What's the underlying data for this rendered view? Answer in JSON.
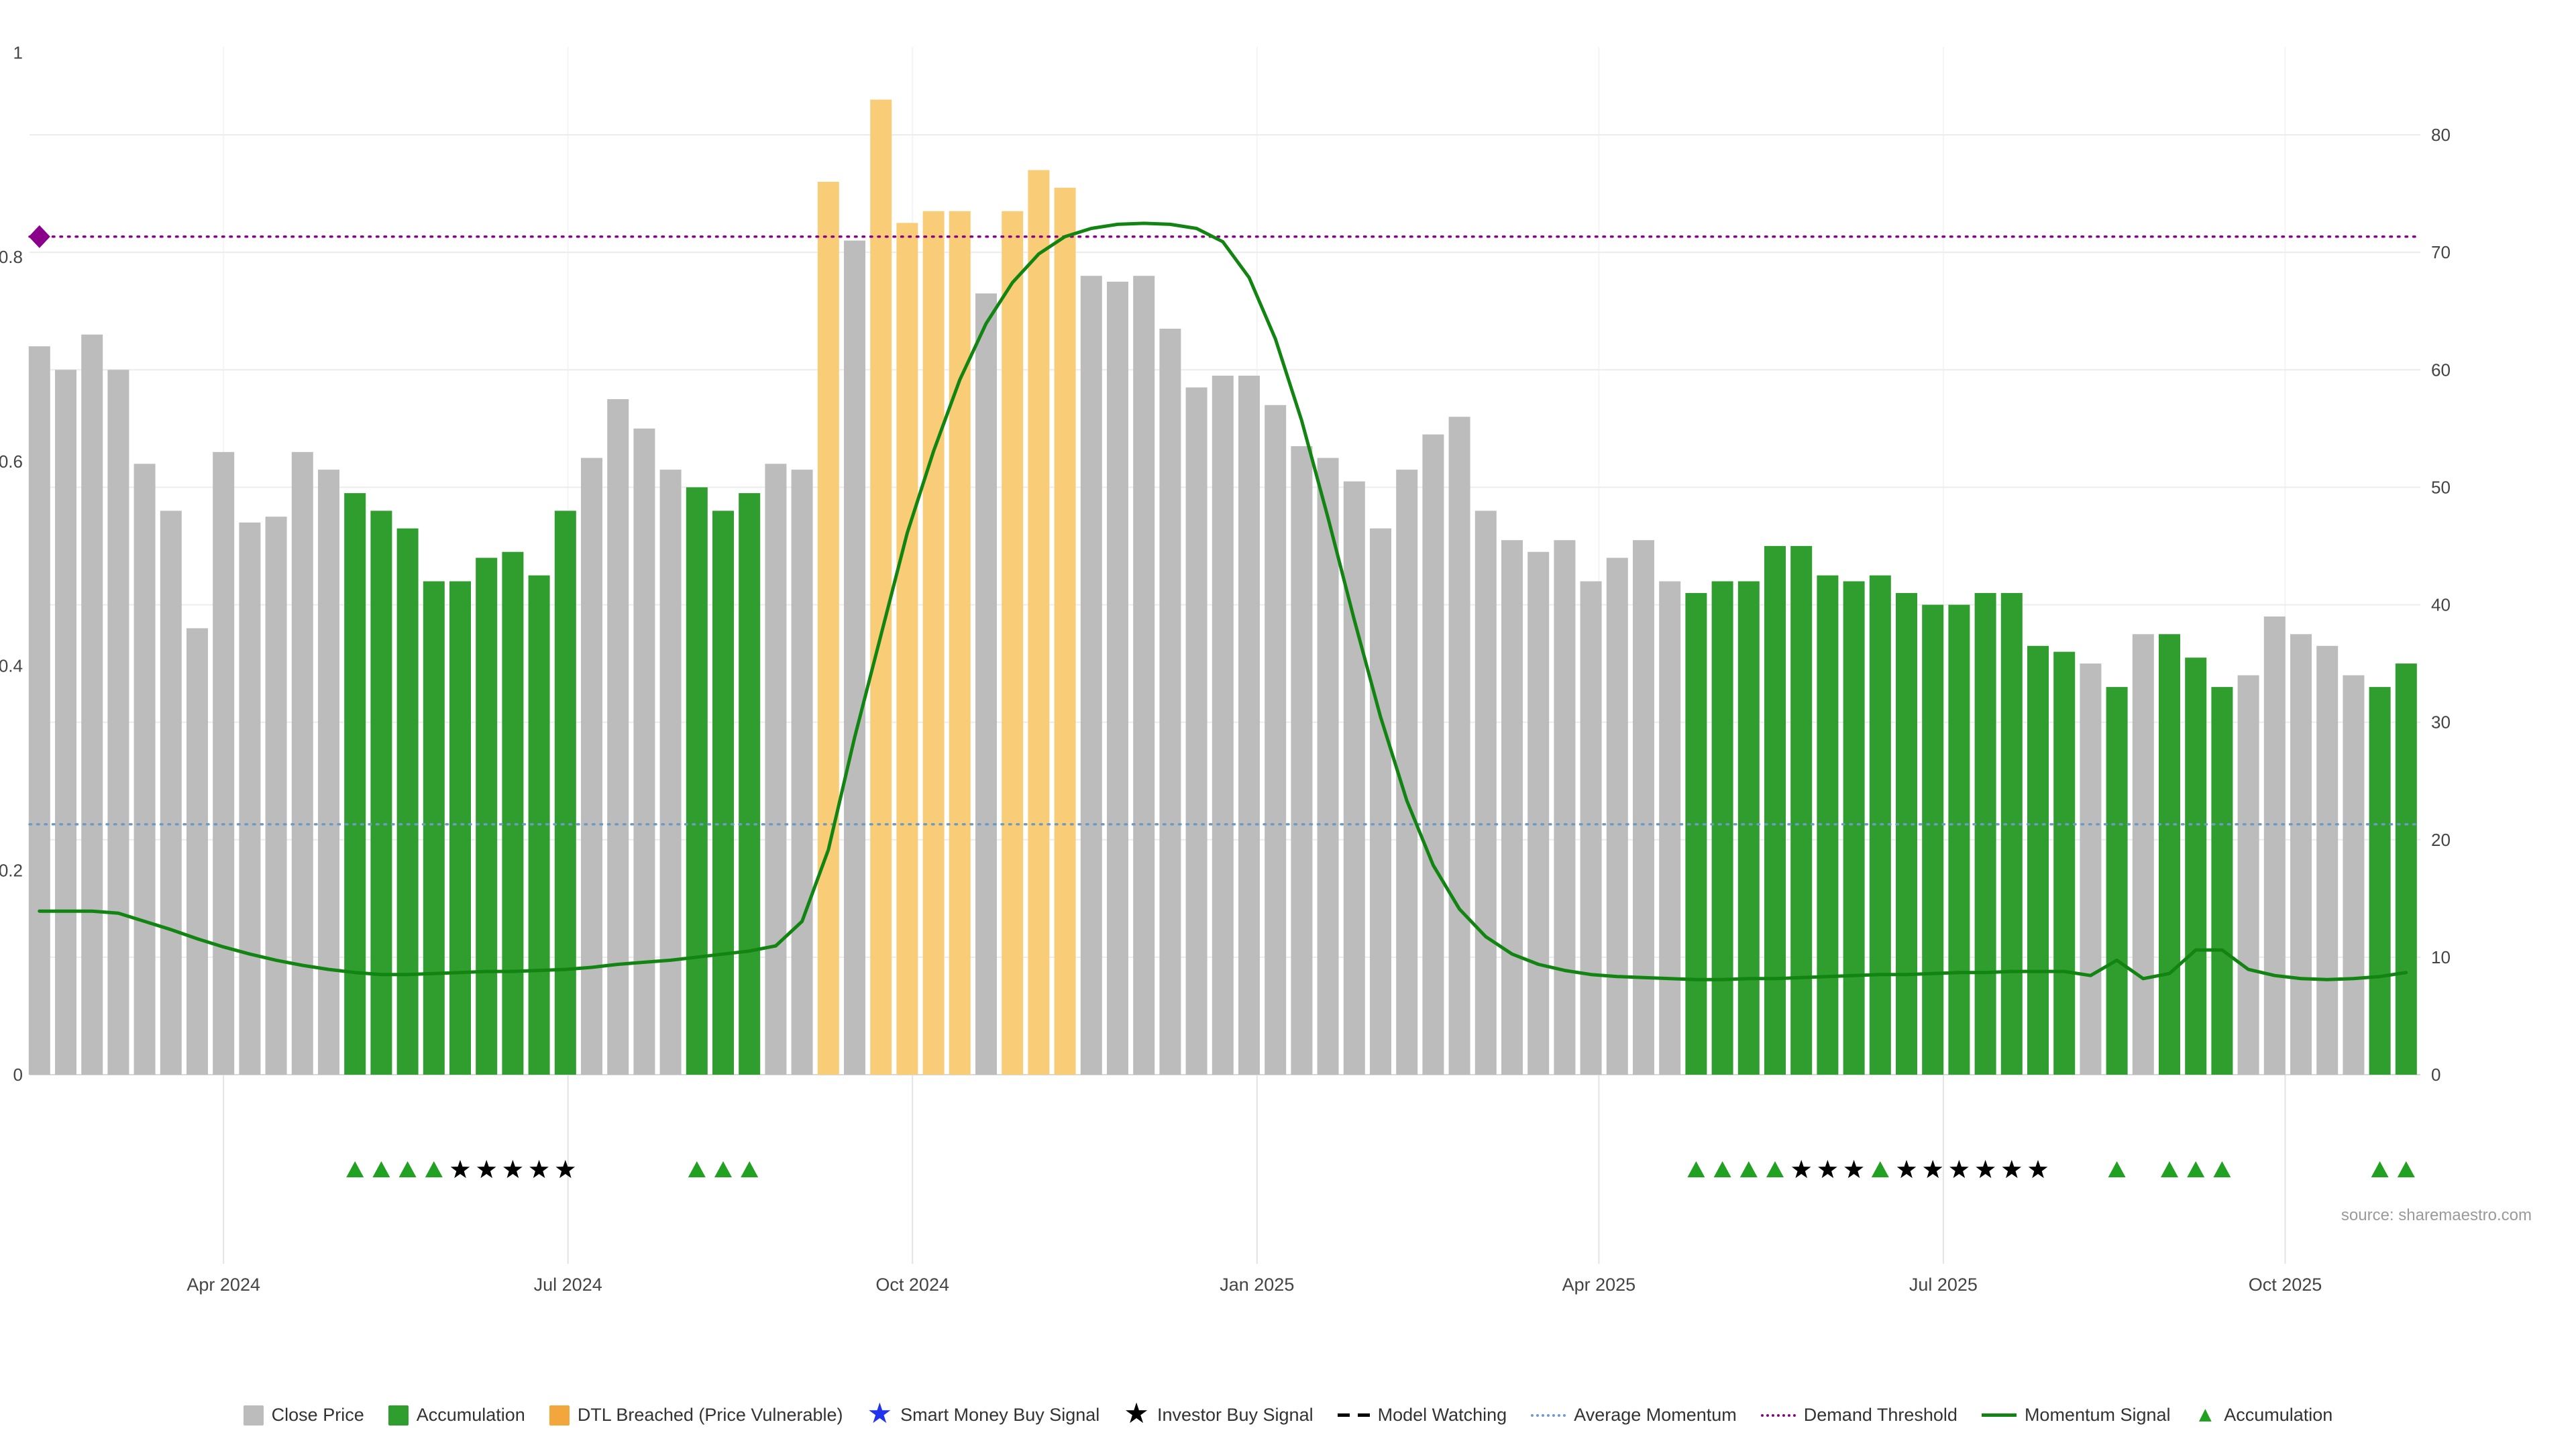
{
  "meta": {
    "source_note": "source: sharemaestro.com"
  },
  "colors": {
    "bar_close": "#bcbcbc",
    "bar_accum": "#2f9e2f",
    "bar_dtl": "#f9cd78",
    "momentum_line": "#128412",
    "marker_accum": "#21a121",
    "marker_investor": "#000000",
    "avg_momentum": "#6d9bc3",
    "demand_threshold": "#8b008b",
    "smart_money_blue": "#2233ee",
    "axis_text": "#444444",
    "grid": "#ececec"
  },
  "chart_data": {
    "type": "bar+line",
    "x_unit": "weekly bars, ~Feb 2024 to Nov 2025",
    "bar_series": {
      "name": "Close Price",
      "axis": "right",
      "values": [
        62,
        60,
        63,
        60,
        52,
        48,
        38,
        53,
        47,
        47.5,
        53,
        51.5,
        49.5,
        48,
        46.5,
        42,
        42,
        44,
        44.5,
        42.5,
        48,
        52.5,
        57.5,
        55,
        51.5,
        50,
        48,
        49.5,
        52,
        51.5,
        76,
        71,
        83,
        72.5,
        73.5,
        73.5,
        66.5,
        73.5,
        77,
        75.5,
        68,
        67.5,
        68,
        63.5,
        58.5,
        59.5,
        59.5,
        57,
        53.5,
        52.5,
        50.5,
        46.5,
        51.5,
        54.5,
        56,
        48,
        45.5,
        44.5,
        45.5,
        42,
        44,
        45.5,
        42,
        41,
        42,
        42,
        45,
        45,
        42.5,
        42,
        42.5,
        41,
        40,
        40,
        41,
        41,
        36.5,
        36,
        35,
        33,
        37.5,
        37.5,
        35.5,
        33,
        34,
        39,
        37.5,
        36.5,
        34,
        33,
        35
      ],
      "states": "ccccccccccccaaaaaaaaaccccaaaccdcddddcdddcccccccccccccccccccccccaaaaaaaaaaaaaaacacaaacccccaa",
      "state_legend": {
        "c": "Close Price",
        "a": "Accumulation",
        "d": "DTL Breached (Price Vulnerable)"
      }
    },
    "line_series": {
      "name": "Momentum Signal",
      "axis": "left",
      "values": [
        0.16,
        0.16,
        0.16,
        0.158,
        0.15,
        0.142,
        0.133,
        0.125,
        0.118,
        0.112,
        0.107,
        0.103,
        0.1,
        0.098,
        0.098,
        0.099,
        0.1,
        0.101,
        0.101,
        0.102,
        0.103,
        0.105,
        0.108,
        0.11,
        0.112,
        0.115,
        0.118,
        0.121,
        0.126,
        0.15,
        0.22,
        0.33,
        0.43,
        0.53,
        0.61,
        0.68,
        0.735,
        0.775,
        0.803,
        0.82,
        0.828,
        0.832,
        0.833,
        0.832,
        0.828,
        0.815,
        0.78,
        0.72,
        0.64,
        0.545,
        0.445,
        0.35,
        0.268,
        0.205,
        0.162,
        0.135,
        0.118,
        0.108,
        0.102,
        0.098,
        0.096,
        0.095,
        0.094,
        0.093,
        0.093,
        0.094,
        0.094,
        0.095,
        0.096,
        0.097,
        0.098,
        0.098,
        0.099,
        0.1,
        0.1,
        0.101,
        0.101,
        0.101,
        0.097,
        0.112,
        0.094,
        0.099,
        0.122,
        0.122,
        0.103,
        0.097,
        0.094,
        0.093,
        0.094,
        0.096,
        0.1
      ]
    },
    "reference_lines": [
      {
        "name": "Average Momentum",
        "axis": "left",
        "value": 0.245,
        "style": "dotted",
        "color": "#6d9bc3"
      },
      {
        "name": "Demand Threshold",
        "axis": "left",
        "value": 0.82,
        "style": "dotted",
        "color": "#8b008b"
      }
    ],
    "diamond_marker": {
      "name": "Demand Threshold marker",
      "bar_index": 0,
      "value": 0.82,
      "color": "#8b008b"
    },
    "signal_markers": [
      [
        12,
        "g"
      ],
      [
        13,
        "g"
      ],
      [
        14,
        "g"
      ],
      [
        15,
        "g"
      ],
      [
        16,
        "k"
      ],
      [
        17,
        "k"
      ],
      [
        18,
        "k"
      ],
      [
        19,
        "k"
      ],
      [
        20,
        "k"
      ],
      [
        25,
        "g"
      ],
      [
        26,
        "g"
      ],
      [
        27,
        "g"
      ],
      [
        63,
        "g"
      ],
      [
        64,
        "g"
      ],
      [
        65,
        "g"
      ],
      [
        66,
        "g"
      ],
      [
        67,
        "k"
      ],
      [
        68,
        "k"
      ],
      [
        69,
        "k"
      ],
      [
        70,
        "g"
      ],
      [
        71,
        "k"
      ],
      [
        72,
        "k"
      ],
      [
        73,
        "k"
      ],
      [
        74,
        "k"
      ],
      [
        75,
        "k"
      ],
      [
        76,
        "k"
      ],
      [
        79,
        "g"
      ],
      [
        81,
        "g"
      ],
      [
        82,
        "g"
      ],
      [
        83,
        "g"
      ],
      [
        89,
        "g"
      ],
      [
        90,
        "g"
      ]
    ],
    "marker_legend": {
      "g": "Accumulation (green triangle)",
      "k": "Investor Buy Signal (black star)"
    },
    "axes": {
      "left": {
        "ticks": [
          "0",
          "0.2",
          "0.4",
          "0.6",
          "0.8",
          "1"
        ],
        "values": [
          0,
          0.2,
          0.4,
          0.6,
          0.8,
          1
        ]
      },
      "right": {
        "ticks": [
          "0",
          "10",
          "20",
          "30",
          "40",
          "50",
          "60",
          "70",
          "80"
        ],
        "values": [
          0,
          10,
          20,
          30,
          40,
          50,
          60,
          70,
          80
        ]
      },
      "x": {
        "ticks": [
          {
            "label": "Apr 2024",
            "i": 7
          },
          {
            "label": "Jul 2024",
            "i": 20.1
          },
          {
            "label": "Oct 2024",
            "i": 33.2
          },
          {
            "label": "Jan 2025",
            "i": 46.3
          },
          {
            "label": "Apr 2025",
            "i": 59.3
          },
          {
            "label": "Jul 2025",
            "i": 72.4
          },
          {
            "label": "Oct 2025",
            "i": 85.4
          }
        ]
      }
    }
  },
  "legend": [
    {
      "label": "Close Price",
      "swatch": "square",
      "color": "#bcbcbc"
    },
    {
      "label": "Accumulation",
      "swatch": "square",
      "color": "#2f9e2f"
    },
    {
      "label": "DTL Breached (Price Vulnerable)",
      "swatch": "square",
      "color": "#f2a63c"
    },
    {
      "label": "Smart Money Buy Signal",
      "swatch": "star",
      "color": "#2233ee"
    },
    {
      "label": "Investor Buy Signal",
      "swatch": "star",
      "color": "#000000"
    },
    {
      "label": "Model Watching",
      "swatch": "dashes",
      "color": "#000000"
    },
    {
      "label": "Average Momentum",
      "swatch": "dotted",
      "color": "#6d9bc3"
    },
    {
      "label": "Demand Threshold",
      "swatch": "dotted",
      "color": "#8b008b"
    },
    {
      "label": "Momentum Signal",
      "swatch": "line",
      "color": "#128412"
    },
    {
      "label": "Accumulation",
      "swatch": "triangle",
      "color": "#21a121"
    }
  ]
}
